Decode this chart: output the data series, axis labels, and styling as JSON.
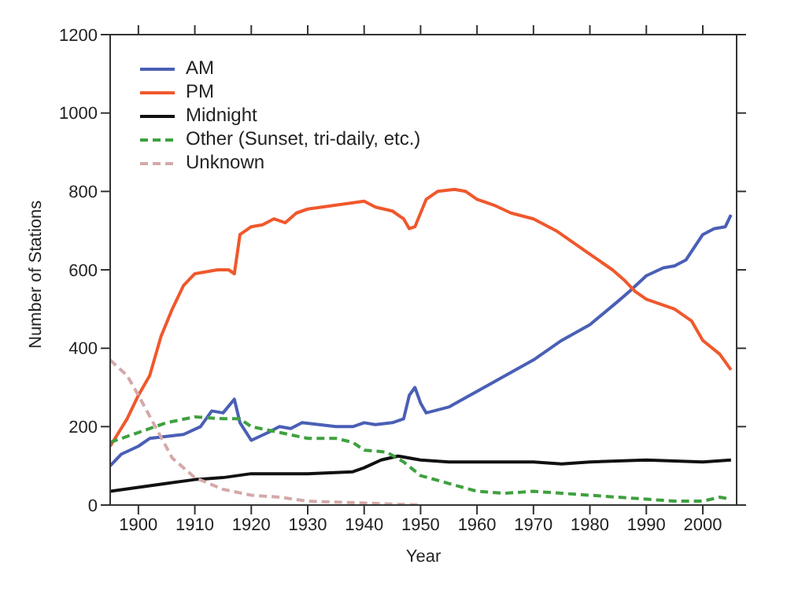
{
  "chart_data": {
    "type": "line",
    "xlabel": "Year",
    "ylabel": "Number of Stations",
    "xlim": [
      1895,
      2006
    ],
    "xticks": [
      1900,
      1910,
      1920,
      1930,
      1940,
      1950,
      1960,
      1970,
      1980,
      1990,
      2000
    ],
    "ylim": [
      0,
      1200
    ],
    "yticks": [
      0,
      200,
      400,
      600,
      800,
      1000,
      1200
    ],
    "grid": false,
    "legend": "top left",
    "marker": "none",
    "series": [
      {
        "name": "AM",
        "color": "#4a5fb5",
        "line_style": "solid",
        "x": [
          1895,
          1897,
          1900,
          1902,
          1905,
          1908,
          1911,
          1913,
          1915,
          1917,
          1918,
          1920,
          1923,
          1925,
          1927,
          1929,
          1932,
          1935,
          1938,
          1940,
          1942,
          1945,
          1947,
          1948,
          1949,
          1950,
          1951,
          1955,
          1960,
          1965,
          1970,
          1975,
          1980,
          1985,
          1987,
          1990,
          1993,
          1995,
          1997,
          2000,
          2002,
          2004,
          2005
        ],
        "values": [
          100,
          130,
          150,
          170,
          175,
          180,
          200,
          240,
          235,
          270,
          210,
          165,
          185,
          200,
          195,
          210,
          205,
          200,
          200,
          210,
          205,
          210,
          220,
          280,
          300,
          260,
          235,
          250,
          290,
          330,
          370,
          420,
          460,
          520,
          545,
          585,
          605,
          610,
          625,
          690,
          705,
          710,
          740
        ]
      },
      {
        "name": "PM",
        "color": "#f0582c",
        "line_style": "solid",
        "x": [
          1895,
          1898,
          1900,
          1902,
          1904,
          1906,
          1908,
          1910,
          1912,
          1914,
          1916,
          1917,
          1918,
          1920,
          1922,
          1924,
          1926,
          1928,
          1930,
          1935,
          1940,
          1942,
          1945,
          1947,
          1948,
          1949,
          1951,
          1953,
          1956,
          1958,
          1960,
          1963,
          1966,
          1970,
          1974,
          1977,
          1980,
          1984,
          1986,
          1988,
          1990,
          1993,
          1995,
          1998,
          2000,
          2003,
          2005
        ],
        "values": [
          150,
          220,
          280,
          330,
          430,
          500,
          560,
          590,
          595,
          600,
          600,
          590,
          690,
          710,
          715,
          730,
          720,
          745,
          755,
          765,
          775,
          760,
          750,
          730,
          705,
          710,
          780,
          800,
          805,
          800,
          780,
          765,
          745,
          730,
          700,
          670,
          640,
          600,
          575,
          545,
          525,
          510,
          500,
          470,
          420,
          385,
          345
        ]
      },
      {
        "name": "Midnight",
        "color": "#111111",
        "line_style": "solid",
        "x": [
          1895,
          1900,
          1905,
          1910,
          1915,
          1920,
          1930,
          1938,
          1940,
          1943,
          1946,
          1950,
          1955,
          1960,
          1970,
          1975,
          1980,
          1990,
          2000,
          2005
        ],
        "values": [
          35,
          45,
          55,
          65,
          70,
          80,
          80,
          85,
          95,
          115,
          125,
          115,
          110,
          110,
          110,
          105,
          110,
          115,
          110,
          115
        ]
      },
      {
        "name": "Other (Sunset, tri-daily, etc.)",
        "color": "#3fa03f",
        "line_style": "dashed",
        "x": [
          1895,
          1900,
          1905,
          1910,
          1915,
          1918,
          1920,
          1925,
          1930,
          1935,
          1938,
          1940,
          1944,
          1947,
          1950,
          1955,
          1960,
          1965,
          1970,
          1975,
          1980,
          1985,
          1990,
          1995,
          2000,
          2003,
          2005
        ],
        "values": [
          160,
          185,
          210,
          225,
          220,
          220,
          200,
          185,
          170,
          170,
          160,
          140,
          135,
          110,
          75,
          55,
          35,
          30,
          35,
          30,
          25,
          20,
          15,
          10,
          10,
          20,
          15
        ]
      },
      {
        "name": "Unknown",
        "color": "#d4a9a9",
        "line_style": "dashed",
        "x": [
          1895,
          1898,
          1900,
          1903,
          1906,
          1910,
          1915,
          1920,
          1925,
          1930,
          1940,
          1950
        ],
        "values": [
          370,
          330,
          280,
          200,
          120,
          70,
          40,
          25,
          20,
          10,
          5,
          0
        ]
      }
    ]
  }
}
